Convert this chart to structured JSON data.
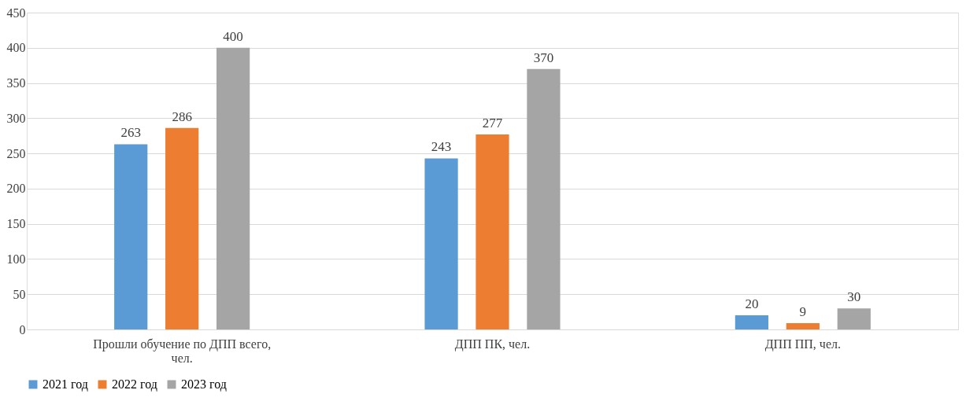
{
  "chart_data": {
    "type": "bar",
    "categories": [
      "Прошли обучение по ДПП всего, чел.",
      "ДПП ПК, чел.",
      "ДПП ПП, чел."
    ],
    "series": [
      {
        "name": "2021 год",
        "color": "#5b9bd5",
        "values": [
          263,
          243,
          20
        ]
      },
      {
        "name": "2022 год",
        "color": "#ed7d31",
        "values": [
          286,
          277,
          9
        ]
      },
      {
        "name": "2023 год",
        "color": "#a5a5a5",
        "values": [
          400,
          370,
          30
        ]
      }
    ],
    "ylim": [
      0,
      450
    ],
    "yticks": [
      0,
      50,
      100,
      150,
      200,
      250,
      300,
      350,
      400,
      450
    ],
    "grid": "y",
    "legend": "bottom",
    "data_labels": true
  }
}
